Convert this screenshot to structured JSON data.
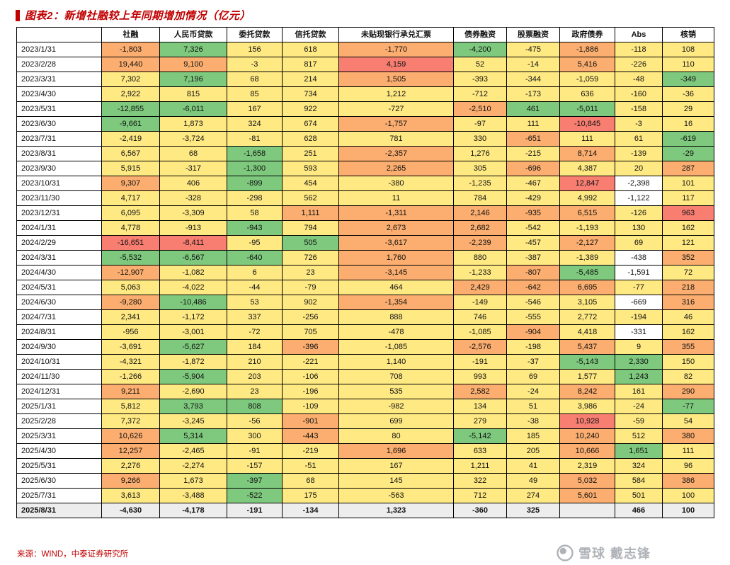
{
  "chart_data": {
    "type": "table",
    "title": "图表2：新增社融较上年同期增加情况（亿元）",
    "source": "来源：WIND，中泰证券研究所",
    "columns": [
      "",
      "社融",
      "人民币贷款",
      "委托贷款",
      "信托贷款",
      "未贴现银行承兑汇票",
      "债券融资",
      "股票融资",
      "政府债券",
      "Abs",
      "核销"
    ],
    "palette": {
      "g": "#7ec97d",
      "y": "#ffe983",
      "o": "#fbae6f",
      "r": "#f87e72",
      "w": "#ffffff",
      "n": "#ededed"
    },
    "rows": [
      {
        "date": "2023/1/31",
        "values": [
          "-1,803",
          "7,326",
          "156",
          "618",
          "-1,770",
          "-4,200",
          "-475",
          "-1,886",
          "-118",
          "108"
        ],
        "colors": [
          "o",
          "g",
          "y",
          "y",
          "o",
          "g",
          "y",
          "o",
          "y",
          "y"
        ]
      },
      {
        "date": "2023/2/28",
        "values": [
          "19,440",
          "9,100",
          "-3",
          "817",
          "4,159",
          "52",
          "-14",
          "5,416",
          "-226",
          "110"
        ],
        "colors": [
          "o",
          "o",
          "y",
          "y",
          "r",
          "y",
          "y",
          "o",
          "y",
          "y"
        ]
      },
      {
        "date": "2023/3/31",
        "values": [
          "7,302",
          "7,196",
          "68",
          "214",
          "1,505",
          "-393",
          "-344",
          "-1,059",
          "-48",
          "-349"
        ],
        "colors": [
          "y",
          "g",
          "y",
          "y",
          "o",
          "y",
          "y",
          "y",
          "y",
          "g"
        ]
      },
      {
        "date": "2023/4/30",
        "values": [
          "2,922",
          "815",
          "85",
          "734",
          "1,212",
          "-712",
          "-173",
          "636",
          "-160",
          "-36"
        ],
        "colors": [
          "y",
          "y",
          "y",
          "y",
          "y",
          "y",
          "y",
          "y",
          "y",
          "y"
        ]
      },
      {
        "date": "2023/5/31",
        "values": [
          "-12,855",
          "-6,011",
          "167",
          "922",
          "-727",
          "-2,510",
          "461",
          "-5,011",
          "-158",
          "29"
        ],
        "colors": [
          "g",
          "g",
          "y",
          "y",
          "y",
          "o",
          "g",
          "g",
          "y",
          "y"
        ]
      },
      {
        "date": "2023/6/30",
        "values": [
          "-9,661",
          "1,873",
          "324",
          "674",
          "-1,757",
          "-97",
          "111",
          "-10,845",
          "-3",
          "16"
        ],
        "colors": [
          "g",
          "y",
          "y",
          "y",
          "o",
          "y",
          "y",
          "r",
          "y",
          "y"
        ]
      },
      {
        "date": "2023/7/31",
        "values": [
          "-2,419",
          "-3,724",
          "-81",
          "628",
          "781",
          "330",
          "-651",
          "111",
          "61",
          "-619"
        ],
        "colors": [
          "y",
          "y",
          "y",
          "y",
          "y",
          "y",
          "o",
          "y",
          "y",
          "g"
        ]
      },
      {
        "date": "2023/8/31",
        "values": [
          "6,567",
          "68",
          "-1,658",
          "251",
          "-2,357",
          "1,276",
          "-215",
          "8,714",
          "-139",
          "-29"
        ],
        "colors": [
          "y",
          "y",
          "g",
          "y",
          "o",
          "y",
          "y",
          "o",
          "y",
          "g"
        ]
      },
      {
        "date": "2023/9/30",
        "values": [
          "5,915",
          "-317",
          "-1,300",
          "593",
          "2,265",
          "305",
          "-696",
          "4,387",
          "20",
          "287"
        ],
        "colors": [
          "y",
          "y",
          "g",
          "y",
          "o",
          "y",
          "o",
          "y",
          "y",
          "o"
        ]
      },
      {
        "date": "2023/10/31",
        "values": [
          "9,307",
          "406",
          "-899",
          "454",
          "-380",
          "-1,235",
          "-467",
          "12,847",
          "-2,398",
          "101"
        ],
        "colors": [
          "o",
          "y",
          "g",
          "y",
          "y",
          "y",
          "y",
          "r",
          "w",
          "y"
        ]
      },
      {
        "date": "2023/11/30",
        "values": [
          "4,717",
          "-328",
          "-298",
          "562",
          "11",
          "784",
          "-429",
          "4,992",
          "-1,122",
          "117"
        ],
        "colors": [
          "y",
          "y",
          "y",
          "y",
          "y",
          "y",
          "y",
          "y",
          "w",
          "y"
        ]
      },
      {
        "date": "2023/12/31",
        "values": [
          "6,095",
          "-3,309",
          "58",
          "1,111",
          "-1,311",
          "2,146",
          "-935",
          "6,515",
          "-126",
          "963"
        ],
        "colors": [
          "y",
          "y",
          "y",
          "o",
          "o",
          "o",
          "o",
          "o",
          "y",
          "r"
        ]
      },
      {
        "date": "2024/1/31",
        "values": [
          "4,778",
          "-913",
          "-943",
          "794",
          "2,673",
          "2,682",
          "-542",
          "-1,193",
          "130",
          "162"
        ],
        "colors": [
          "y",
          "y",
          "g",
          "y",
          "o",
          "o",
          "y",
          "y",
          "y",
          "y"
        ]
      },
      {
        "date": "2024/2/29",
        "values": [
          "-16,651",
          "-8,411",
          "-95",
          "505",
          "-3,617",
          "-2,239",
          "-457",
          "-2,127",
          "69",
          "121"
        ],
        "colors": [
          "r",
          "r",
          "y",
          "g",
          "o",
          "o",
          "y",
          "o",
          "y",
          "y"
        ]
      },
      {
        "date": "2024/3/31",
        "values": [
          "-5,532",
          "-6,567",
          "-640",
          "726",
          "1,760",
          "880",
          "-387",
          "-1,389",
          "-438",
          "352"
        ],
        "colors": [
          "g",
          "g",
          "g",
          "y",
          "o",
          "y",
          "y",
          "y",
          "w",
          "o"
        ]
      },
      {
        "date": "2024/4/30",
        "values": [
          "-12,907",
          "-1,082",
          "6",
          "23",
          "-3,145",
          "-1,233",
          "-807",
          "-5,485",
          "-1,591",
          "72"
        ],
        "colors": [
          "o",
          "y",
          "y",
          "y",
          "o",
          "y",
          "o",
          "g",
          "w",
          "y"
        ]
      },
      {
        "date": "2024/5/31",
        "values": [
          "5,063",
          "-4,022",
          "-44",
          "-79",
          "464",
          "2,429",
          "-642",
          "6,695",
          "-77",
          "218"
        ],
        "colors": [
          "y",
          "y",
          "y",
          "y",
          "y",
          "o",
          "o",
          "o",
          "y",
          "o"
        ]
      },
      {
        "date": "2024/6/30",
        "values": [
          "-9,280",
          "-10,486",
          "53",
          "902",
          "-1,354",
          "-149",
          "-546",
          "3,105",
          "-669",
          "316"
        ],
        "colors": [
          "o",
          "g",
          "y",
          "y",
          "o",
          "y",
          "y",
          "y",
          "w",
          "o"
        ]
      },
      {
        "date": "2024/7/31",
        "values": [
          "2,341",
          "-1,172",
          "337",
          "-256",
          "888",
          "746",
          "-555",
          "2,772",
          "-194",
          "46"
        ],
        "colors": [
          "y",
          "y",
          "y",
          "y",
          "y",
          "y",
          "y",
          "y",
          "y",
          "y"
        ]
      },
      {
        "date": "2024/8/31",
        "values": [
          "-956",
          "-3,001",
          "-72",
          "705",
          "-478",
          "-1,085",
          "-904",
          "4,418",
          "-331",
          "162"
        ],
        "colors": [
          "y",
          "y",
          "y",
          "y",
          "y",
          "y",
          "o",
          "y",
          "w",
          "y"
        ]
      },
      {
        "date": "2024/9/30",
        "values": [
          "-3,691",
          "-5,627",
          "184",
          "-396",
          "-1,085",
          "-2,576",
          "-198",
          "5,437",
          "9",
          "355"
        ],
        "colors": [
          "y",
          "g",
          "y",
          "o",
          "y",
          "o",
          "y",
          "o",
          "y",
          "o"
        ]
      },
      {
        "date": "2024/10/31",
        "values": [
          "-4,321",
          "-1,872",
          "210",
          "-221",
          "1,140",
          "-191",
          "-37",
          "-5,143",
          "2,330",
          "150"
        ],
        "colors": [
          "y",
          "y",
          "y",
          "y",
          "y",
          "y",
          "y",
          "g",
          "g",
          "y"
        ]
      },
      {
        "date": "2024/11/30",
        "values": [
          "-1,266",
          "-5,904",
          "203",
          "-106",
          "708",
          "993",
          "69",
          "1,577",
          "1,243",
          "82"
        ],
        "colors": [
          "y",
          "g",
          "y",
          "y",
          "y",
          "y",
          "y",
          "y",
          "g",
          "y"
        ]
      },
      {
        "date": "2024/12/31",
        "values": [
          "9,211",
          "-2,690",
          "23",
          "-196",
          "535",
          "2,582",
          "-24",
          "8,242",
          "161",
          "290"
        ],
        "colors": [
          "o",
          "y",
          "y",
          "y",
          "y",
          "o",
          "y",
          "o",
          "y",
          "o"
        ]
      },
      {
        "date": "2025/1/31",
        "values": [
          "5,812",
          "3,793",
          "808",
          "-109",
          "-982",
          "134",
          "51",
          "3,986",
          "-24",
          "-77"
        ],
        "colors": [
          "y",
          "g",
          "g",
          "y",
          "y",
          "y",
          "y",
          "y",
          "y",
          "g"
        ]
      },
      {
        "date": "2025/2/28",
        "values": [
          "7,372",
          "-3,245",
          "-56",
          "-901",
          "699",
          "279",
          "-38",
          "10,928",
          "-59",
          "54"
        ],
        "colors": [
          "y",
          "y",
          "y",
          "o",
          "y",
          "y",
          "y",
          "r",
          "y",
          "y"
        ]
      },
      {
        "date": "2025/3/31",
        "values": [
          "10,626",
          "5,314",
          "300",
          "-443",
          "80",
          "-5,142",
          "185",
          "10,240",
          "512",
          "380"
        ],
        "colors": [
          "o",
          "g",
          "y",
          "o",
          "y",
          "g",
          "y",
          "o",
          "y",
          "o"
        ]
      },
      {
        "date": "2025/4/30",
        "values": [
          "12,257",
          "-2,465",
          "-91",
          "-219",
          "1,696",
          "633",
          "205",
          "10,666",
          "1,651",
          "111"
        ],
        "colors": [
          "o",
          "y",
          "y",
          "y",
          "o",
          "y",
          "y",
          "o",
          "g",
          "y"
        ]
      },
      {
        "date": "2025/5/31",
        "values": [
          "2,276",
          "-2,274",
          "-157",
          "-51",
          "167",
          "1,211",
          "41",
          "2,319",
          "324",
          "96"
        ],
        "colors": [
          "y",
          "y",
          "y",
          "y",
          "y",
          "y",
          "y",
          "y",
          "y",
          "y"
        ]
      },
      {
        "date": "2025/6/30",
        "values": [
          "9,266",
          "1,673",
          "-397",
          "68",
          "145",
          "322",
          "49",
          "5,032",
          "584",
          "386"
        ],
        "colors": [
          "o",
          "y",
          "g",
          "y",
          "y",
          "y",
          "y",
          "o",
          "y",
          "o"
        ]
      },
      {
        "date": "2025/7/31",
        "values": [
          "3,613",
          "-3,488",
          "-522",
          "175",
          "-563",
          "712",
          "274",
          "5,601",
          "501",
          "100"
        ],
        "colors": [
          "y",
          "y",
          "g",
          "y",
          "y",
          "y",
          "y",
          "o",
          "y",
          "y"
        ]
      },
      {
        "date": "2025/8/31",
        "values": [
          "-4,630",
          "-4,178",
          "-191",
          "-134",
          "1,323",
          "-360",
          "325",
          "",
          "466",
          "100"
        ],
        "colors": [
          "n",
          "n",
          "n",
          "n",
          "n",
          "n",
          "n",
          "n",
          "n",
          "n"
        ],
        "bold": true
      }
    ]
  },
  "watermark": {
    "brand": "雪球",
    "name": "戴志锋"
  }
}
